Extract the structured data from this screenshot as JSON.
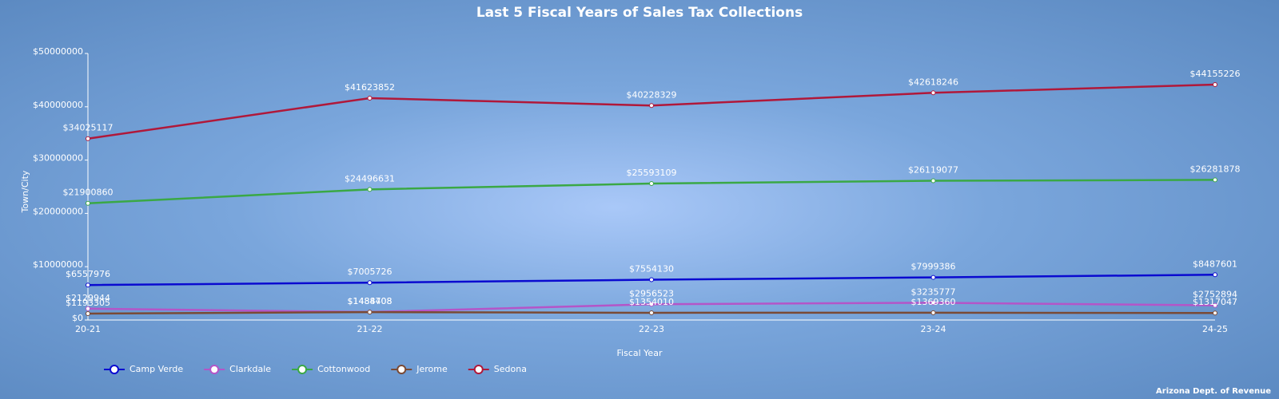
{
  "chart_data": {
    "type": "line",
    "title": "Last 5 Fiscal Years of Sales Tax Collections",
    "x_label": "Fiscal Year",
    "y_label": "Town/City",
    "credit": "Arizona Dept. of Revenue",
    "categories": [
      "20-21",
      "21-22",
      "22-23",
      "23-24",
      "24-25"
    ],
    "ylim": [
      0,
      50000000
    ],
    "yticks": [
      {
        "value": 0,
        "label": "$0"
      },
      {
        "value": 10000000,
        "label": "$10000000"
      },
      {
        "value": 20000000,
        "label": "$20000000"
      },
      {
        "value": 30000000,
        "label": "$30000000"
      },
      {
        "value": 40000000,
        "label": "$40000000"
      },
      {
        "value": 50000000,
        "label": "$50000000"
      }
    ],
    "legend": "bottom-left",
    "series": [
      {
        "name": "Camp Verde",
        "color": "#0a0ad0",
        "values": [
          6557976,
          7005726,
          7554130,
          7999386,
          8487601
        ],
        "value_labels": [
          "$6557976",
          "$7005726",
          "$7554130",
          "$7999386",
          "$8487601"
        ]
      },
      {
        "name": "Clarkdale",
        "color": "#b455c8",
        "values": [
          2129944,
          1488408,
          2956523,
          3235777,
          2752894
        ],
        "value_labels": [
          "$2129944",
          "$1488408",
          "$2956523",
          "$3235777",
          "$2752894"
        ]
      },
      {
        "name": "Cottonwood",
        "color": "#3aa845",
        "values": [
          21900860,
          24496631,
          25593109,
          26119077,
          26281878
        ],
        "value_labels": [
          "$21900860",
          "$24496631",
          "$25593109",
          "$26119077",
          "$26281878"
        ]
      },
      {
        "name": "Jerome",
        "color": "#7a4a35",
        "values": [
          1193305,
          1484708,
          1354010,
          1369360,
          1317047
        ],
        "value_labels": [
          "$1193305",
          "$1484708",
          "$1354010",
          "$1369360",
          "$1317047"
        ]
      },
      {
        "name": "Sedona",
        "color": "#b0183a",
        "values": [
          34025117,
          41623852,
          40228329,
          42618246,
          44155226
        ],
        "value_labels": [
          "$34025117",
          "$41623852",
          "$40228329",
          "$42618246",
          "$44155226"
        ]
      }
    ]
  }
}
